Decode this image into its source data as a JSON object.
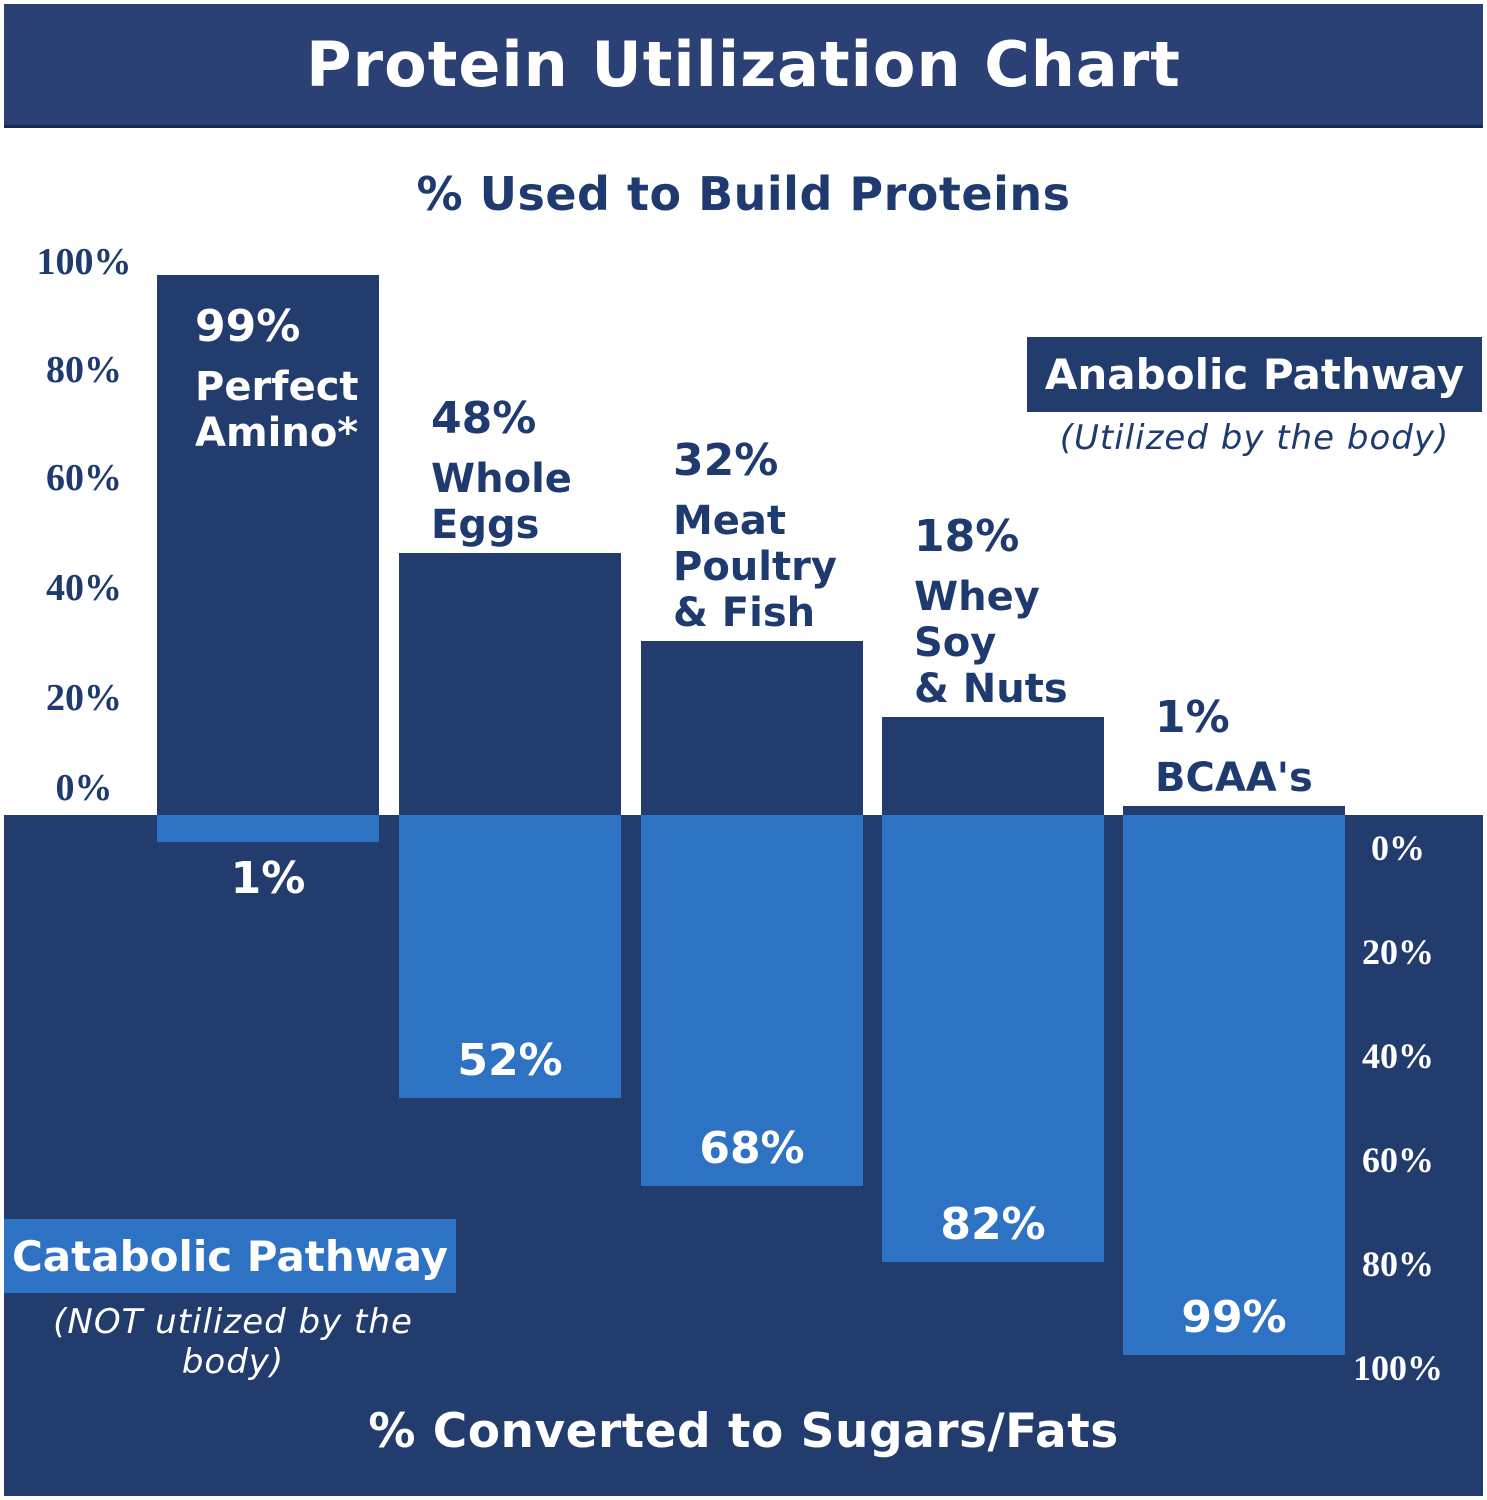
{
  "title": "Protein Utilization Chart",
  "top_axis_title": "% Used to Build Proteins",
  "bottom_axis_title": "% Converted to Sugars/Fats",
  "legend": {
    "anabolic": {
      "label": "Anabolic Pathway",
      "sublabel": "(Utilized by the body)"
    },
    "catabolic": {
      "label": "Catabolic Pathway",
      "sublabel": "(NOT utilized by the body)"
    }
  },
  "colors": {
    "navy_dark": "#233C6E",
    "navy_band": "#2B4074",
    "light_blue": "#2E72C4",
    "text_navy": "#1F3A6E",
    "white": "#FFFFFF"
  },
  "chart_data": {
    "type": "bar",
    "orientation": "diverging-vertical",
    "categories": [
      "Perfect Amino*",
      "Whole Eggs",
      "Meat Poultry & Fish",
      "Whey Soy & Nuts",
      "BCAA's"
    ],
    "category_display_lines": [
      [
        "Perfect",
        "Amino*"
      ],
      [
        "Whole",
        "Eggs"
      ],
      [
        "Meat",
        "Poultry",
        "& Fish"
      ],
      [
        "Whey",
        "Soy",
        "& Nuts"
      ],
      [
        "BCAA's"
      ]
    ],
    "series": [
      {
        "name": "Anabolic Pathway — % Used to Build Proteins",
        "values": [
          99,
          48,
          32,
          18,
          1
        ]
      },
      {
        "name": "Catabolic Pathway — % Converted to Sugars/Fats",
        "values": [
          1,
          52,
          68,
          82,
          99
        ]
      }
    ],
    "value_labels_top": [
      "99%",
      "48%",
      "32%",
      "18%",
      "1%"
    ],
    "value_labels_bottom": [
      "1%",
      "52%",
      "68%",
      "82%",
      "99%"
    ],
    "top_axis_ticks": [
      "100%",
      "80%",
      "60%",
      "40%",
      "20%",
      "0%"
    ],
    "bottom_axis_ticks": [
      "0%",
      "20%",
      "40%",
      "60%",
      "80%",
      "100%"
    ],
    "ylim_top": [
      0,
      100
    ],
    "ylim_bottom": [
      0,
      100
    ],
    "grid": false,
    "legend_position": "anabolic top-right, catabolic bottom-left"
  }
}
